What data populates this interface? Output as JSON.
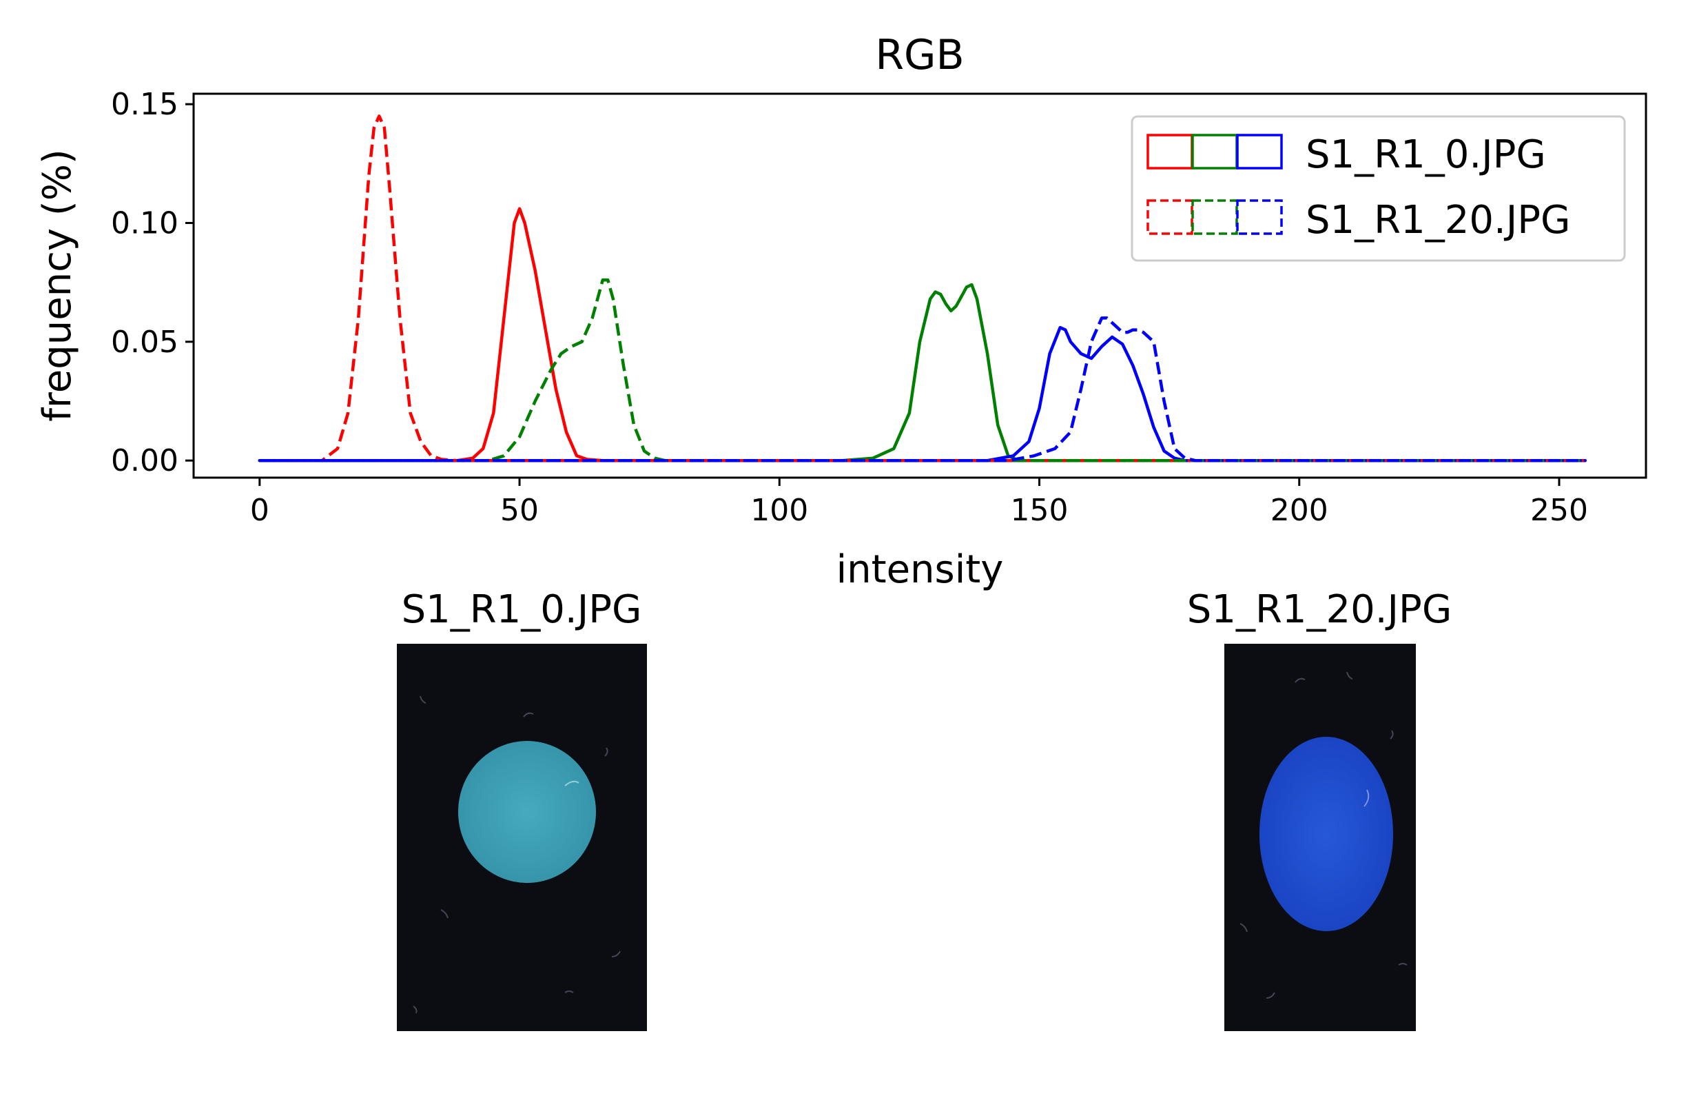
{
  "chart_data": [
    {
      "type": "line",
      "title": "RGB",
      "xlabel": "intensity",
      "ylabel": "frequency (%)",
      "xlim": [
        -12.7,
        266.7
      ],
      "ylim": [
        -0.0072,
        0.1544
      ],
      "xticks": [
        0,
        50,
        100,
        150,
        200,
        250
      ],
      "xtick_labels": [
        "0",
        "50",
        "100",
        "150",
        "200",
        "250"
      ],
      "yticks": [
        0.0,
        0.05,
        0.1,
        0.15
      ],
      "ytick_labels": [
        "0.00",
        "0.05",
        "0.10",
        "0.15"
      ],
      "grid": false,
      "legend_position": "top-right",
      "legend": [
        {
          "label": "S1_R1_0.JPG",
          "style": "solid",
          "colors": [
            "#ff0000",
            "#008000",
            "#0000ff"
          ]
        },
        {
          "label": "S1_R1_20.JPG",
          "style": "dashed",
          "colors": [
            "#ff0000",
            "#008000",
            "#0000ff"
          ]
        }
      ],
      "series": [
        {
          "image": "S1_R1_0.JPG",
          "channel": "red",
          "color": "#ff0000",
          "style": "solid",
          "x": [
            0,
            38,
            41,
            43,
            45,
            47,
            49,
            50,
            51,
            53,
            55,
            57,
            59,
            61,
            63,
            66,
            70,
            255
          ],
          "y": [
            0,
            0,
            0.001,
            0.005,
            0.02,
            0.06,
            0.1,
            0.106,
            0.1,
            0.08,
            0.055,
            0.03,
            0.012,
            0.002,
            0.0005,
            0,
            0,
            0
          ]
        },
        {
          "image": "S1_R1_0.JPG",
          "channel": "green",
          "color": "#008000",
          "style": "solid",
          "x": [
            0,
            112,
            118,
            122,
            125,
            127,
            129,
            130,
            131,
            132,
            133,
            134,
            136,
            137,
            138,
            140,
            142,
            144,
            146,
            255
          ],
          "y": [
            0,
            0,
            0.001,
            0.005,
            0.02,
            0.05,
            0.068,
            0.071,
            0.07,
            0.066,
            0.063,
            0.065,
            0.073,
            0.074,
            0.068,
            0.045,
            0.015,
            0.002,
            0,
            0
          ]
        },
        {
          "image": "S1_R1_0.JPG",
          "channel": "blue",
          "color": "#0000ff",
          "style": "solid",
          "x": [
            0,
            140,
            145,
            148,
            150,
            152,
            154,
            155,
            156,
            158,
            160,
            162,
            164,
            166,
            168,
            170,
            172,
            174,
            176,
            178,
            255
          ],
          "y": [
            0,
            0,
            0.002,
            0.008,
            0.022,
            0.045,
            0.056,
            0.055,
            0.05,
            0.045,
            0.043,
            0.048,
            0.052,
            0.049,
            0.04,
            0.028,
            0.014,
            0.004,
            0.001,
            0,
            0
          ]
        },
        {
          "image": "S1_R1_20.JPG",
          "channel": "red",
          "color": "#ff0000",
          "style": "dashed",
          "x": [
            0,
            12,
            15,
            17,
            19,
            21,
            22,
            23,
            24,
            25,
            27,
            29,
            31,
            33,
            35,
            38,
            255
          ],
          "y": [
            0,
            0,
            0.005,
            0.02,
            0.06,
            0.12,
            0.14,
            0.145,
            0.14,
            0.115,
            0.06,
            0.02,
            0.008,
            0.002,
            0.0005,
            0,
            0
          ]
        },
        {
          "image": "S1_R1_20.JPG",
          "channel": "green",
          "color": "#008000",
          "style": "dashed",
          "x": [
            0,
            44,
            47,
            50,
            53,
            56,
            58,
            60,
            62,
            64,
            66,
            67,
            68,
            70,
            72,
            74,
            76,
            78,
            255
          ],
          "y": [
            0,
            0,
            0.002,
            0.01,
            0.025,
            0.038,
            0.045,
            0.048,
            0.05,
            0.06,
            0.076,
            0.076,
            0.068,
            0.04,
            0.015,
            0.004,
            0.001,
            0,
            0
          ]
        },
        {
          "image": "S1_R1_20.JPG",
          "channel": "blue",
          "color": "#0000ff",
          "style": "dashed",
          "x": [
            0,
            144,
            149,
            153,
            156,
            158,
            160,
            162,
            163,
            164,
            166,
            167,
            168,
            169,
            170,
            172,
            174,
            176,
            178,
            180,
            255
          ],
          "y": [
            0,
            0,
            0.002,
            0.005,
            0.012,
            0.03,
            0.05,
            0.06,
            0.06,
            0.058,
            0.054,
            0.054,
            0.055,
            0.055,
            0.054,
            0.05,
            0.025,
            0.005,
            0.001,
            0,
            0
          ]
        }
      ]
    }
  ],
  "images": [
    {
      "title": "S1_R1_0.JPG",
      "background": "#0b0d12",
      "spot_color": "#3a9db2",
      "spot_shape": "circle"
    },
    {
      "title": "S1_R1_20.JPG",
      "background": "#0b0d12",
      "spot_color": "#1f4fd0",
      "spot_shape": "ellipse"
    }
  ]
}
